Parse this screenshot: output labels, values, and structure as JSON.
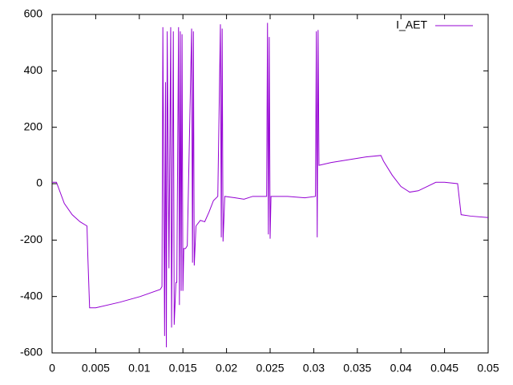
{
  "chart_data": {
    "type": "line",
    "xlim": [
      0,
      0.05
    ],
    "xticks": [
      0,
      0.005,
      0.01,
      0.015,
      0.02,
      0.025,
      0.03,
      0.035,
      0.04,
      0.045,
      0.05
    ],
    "ylim": [
      -600,
      600
    ],
    "yticks": [
      -600,
      -400,
      -200,
      0,
      200,
      400,
      600
    ],
    "grid": false,
    "legend": "top-right",
    "x": [
      0,
      0.0005,
      0.0014,
      0.0023,
      0.0032,
      0.004,
      0.0041,
      0.0043,
      0.005,
      0.0078,
      0.0101,
      0.0124,
      0.0126,
      0.0127,
      0.0129,
      0.013,
      0.0131,
      0.0132,
      0.0134,
      0.0136,
      0.0137,
      0.0139,
      0.014,
      0.0142,
      0.0143,
      0.0145,
      0.0146,
      0.0147,
      0.0148,
      0.0149,
      0.015,
      0.0151,
      0.0153,
      0.0155,
      0.016,
      0.0161,
      0.0162,
      0.0163,
      0.0165,
      0.017,
      0.0175,
      0.018,
      0.0185,
      0.019,
      0.0193,
      0.0194,
      0.0195,
      0.0196,
      0.0198,
      0.021,
      0.022,
      0.023,
      0.024,
      0.0246,
      0.0247,
      0.0248,
      0.0249,
      0.025,
      0.0251,
      0.027,
      0.029,
      0.0302,
      0.0303,
      0.0304,
      0.0305,
      0.0306,
      0.032,
      0.034,
      0.036,
      0.0377,
      0.038,
      0.039,
      0.04,
      0.041,
      0.042,
      0.043,
      0.044,
      0.045,
      0.0465,
      0.0469,
      0.048,
      0.05
    ],
    "series": [
      {
        "name": "I_AET",
        "color": "#9400d3",
        "values": [
          5,
          5,
          -70,
          -110,
          -135,
          -150,
          -260,
          -440,
          -440,
          -420,
          -400,
          -375,
          -365,
          555,
          -540,
          360,
          -580,
          540,
          -300,
          555,
          -510,
          540,
          -500,
          -350,
          -350,
          555,
          -430,
          540,
          -380,
          530,
          -380,
          -230,
          -230,
          -220,
          550,
          -280,
          540,
          -290,
          -150,
          -130,
          -135,
          -100,
          -60,
          -45,
          565,
          -190,
          550,
          -205,
          -45,
          -50,
          -55,
          -45,
          -45,
          -45,
          570,
          -180,
          520,
          -195,
          -45,
          -45,
          -50,
          -45,
          540,
          -190,
          545,
          65,
          75,
          85,
          95,
          100,
          80,
          30,
          -10,
          -30,
          -25,
          -10,
          5,
          5,
          0,
          -110,
          -115,
          -120
        ]
      }
    ]
  }
}
